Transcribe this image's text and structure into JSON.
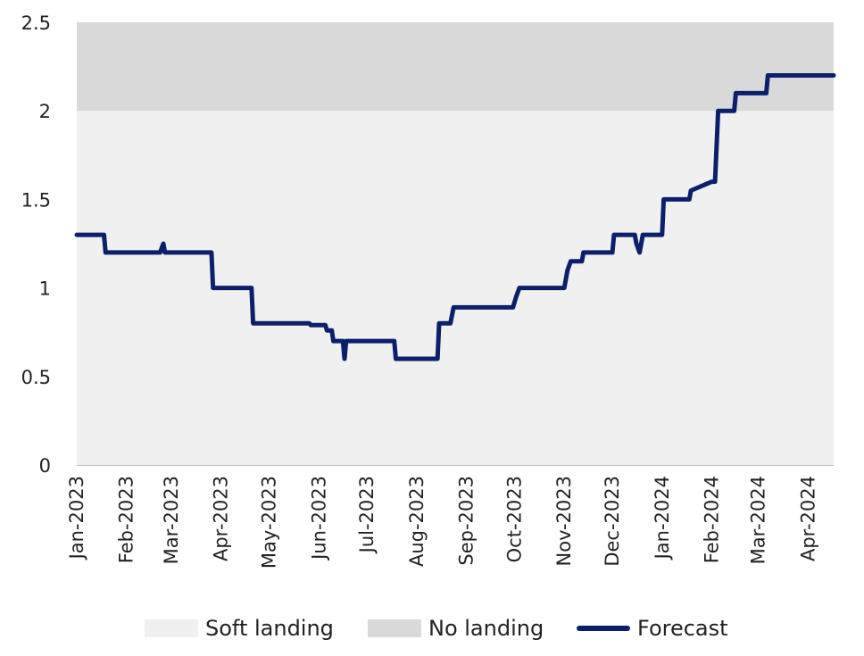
{
  "chart_data": {
    "type": "line",
    "title": "",
    "xlabel": "",
    "ylabel": "",
    "ylim": [
      0,
      2.5
    ],
    "yticks": [
      "0",
      "0.5",
      "1",
      "1.5",
      "2",
      "2.5"
    ],
    "xticks": [
      "Jan-2023",
      "Feb-2023",
      "Mar-2023",
      "Apr-2023",
      "May-2023",
      "Jun-2023",
      "Jul-2023",
      "Aug-2023",
      "Sep-2023",
      "Oct-2023",
      "Nov-2023",
      "Dec-2023",
      "Jan-2024",
      "Feb-2024",
      "Mar-2024",
      "Apr-2024"
    ],
    "grid": false,
    "legend_position": "bottom",
    "bands": [
      {
        "name": "Soft landing",
        "range": [
          0,
          2
        ],
        "color": "#f0f0f0"
      },
      {
        "name": "No landing",
        "range": [
          2,
          2.5
        ],
        "color": "#d9d9d9"
      }
    ],
    "series": [
      {
        "name": "Forecast",
        "color": "#0b1f6b",
        "x": [
          "2023-01-01",
          "2023-01-18",
          "2023-01-19",
          "2023-02-22",
          "2023-02-24",
          "2023-02-25",
          "2023-03-26",
          "2023-03-27",
          "2023-04-20",
          "2023-04-21",
          "2023-05-26",
          "2023-05-27",
          "2023-06-05",
          "2023-06-06",
          "2023-06-09",
          "2023-06-10",
          "2023-06-16",
          "2023-06-17",
          "2023-06-18",
          "2023-06-19",
          "2023-07-18",
          "2023-07-19",
          "2023-08-14",
          "2023-08-15",
          "2023-08-22",
          "2023-08-24",
          "2023-09-30",
          "2023-10-02",
          "2023-10-04",
          "2023-11-01",
          "2023-11-03",
          "2023-11-05",
          "2023-11-12",
          "2023-11-13",
          "2023-12-01",
          "2023-12-02",
          "2023-12-15",
          "2023-12-16",
          "2023-12-18",
          "2023-12-20",
          "2024-01-01",
          "2024-01-02",
          "2024-01-18",
          "2024-01-19",
          "2024-02-01",
          "2024-02-03",
          "2024-02-05",
          "2024-02-15",
          "2024-02-16",
          "2024-03-01",
          "2024-03-06",
          "2024-03-07",
          "2024-03-25",
          "2024-03-27",
          "2024-04-17"
        ],
        "values": [
          1.3,
          1.3,
          1.2,
          1.2,
          1.25,
          1.2,
          1.2,
          1.0,
          1.0,
          0.8,
          0.8,
          0.79,
          0.79,
          0.76,
          0.76,
          0.7,
          0.7,
          0.6,
          0.7,
          0.7,
          0.7,
          0.6,
          0.6,
          0.8,
          0.8,
          0.89,
          0.89,
          0.95,
          1.0,
          1.0,
          1.1,
          1.15,
          1.15,
          1.2,
          1.2,
          1.3,
          1.3,
          1.25,
          1.2,
          1.3,
          1.3,
          1.5,
          1.5,
          1.55,
          1.6,
          1.6,
          2.0,
          2.0,
          2.1,
          2.1,
          2.1,
          2.2,
          2.2,
          2.2,
          2.2
        ]
      }
    ]
  },
  "legend": {
    "soft_landing": "Soft landing",
    "no_landing": "No landing",
    "forecast": "Forecast",
    "soft_color": "#f0f0f0",
    "no_color": "#d9d9d9",
    "line_color": "#0b1f6b"
  }
}
